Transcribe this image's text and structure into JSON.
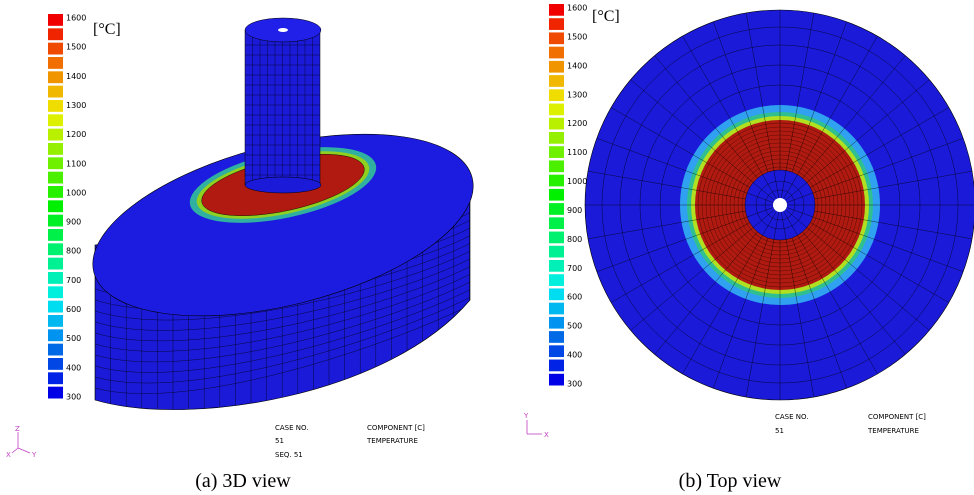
{
  "panels": [
    {
      "legend": {
        "unit": "[°C]",
        "ticks": [
          1600,
          1500,
          1400,
          1300,
          1200,
          1100,
          1000,
          900,
          800,
          700,
          600,
          500,
          400,
          300
        ]
      },
      "info": {
        "case_label": "CASE NO.",
        "case_value": "51",
        "seq": "SEQ. 51",
        "component_label": "COMPONENT [C]",
        "component_value": "TEMPERATURE"
      },
      "axes": [
        "Z",
        "X",
        "Y"
      ],
      "caption": "(a) 3D view"
    },
    {
      "legend": {
        "unit": "[°C]",
        "ticks": [
          1600,
          1500,
          1400,
          1300,
          1200,
          1100,
          1000,
          900,
          800,
          700,
          600,
          500,
          400,
          300
        ]
      },
      "info": {
        "case_label": "CASE NO.",
        "case_value": "51",
        "component_label": "COMPONENT [C]",
        "component_value": "TEMPERATURE"
      },
      "axes": [
        "Y",
        "X"
      ],
      "caption": "(b) Top view"
    }
  ]
}
